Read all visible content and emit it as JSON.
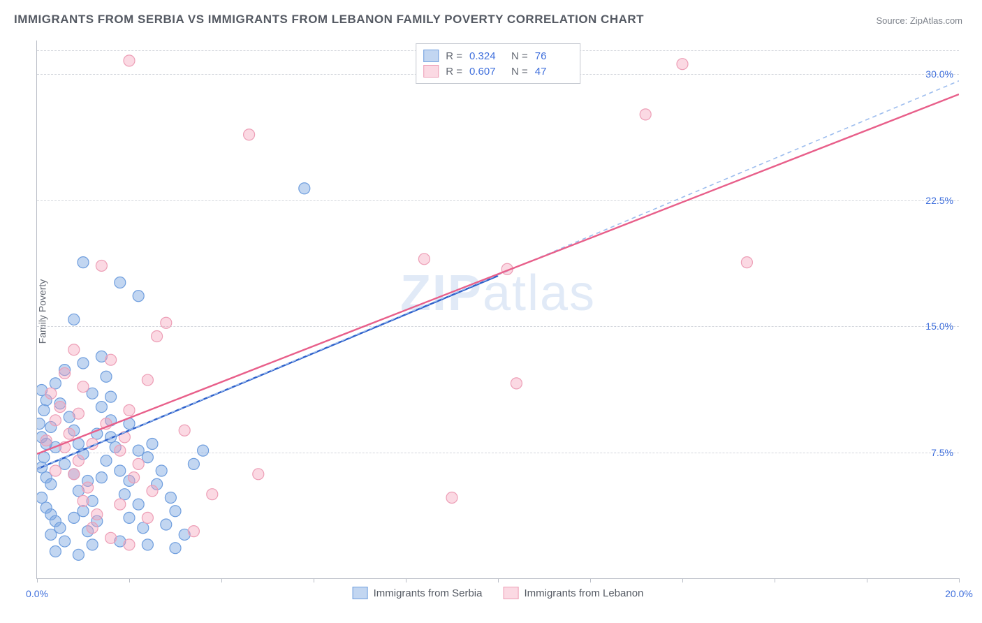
{
  "title": "IMMIGRANTS FROM SERBIA VS IMMIGRANTS FROM LEBANON FAMILY POVERTY CORRELATION CHART",
  "source": "Source: ZipAtlas.com",
  "y_axis_label": "Family Poverty",
  "watermark_bold": "ZIP",
  "watermark_light": "atlas",
  "chart": {
    "type": "scatter",
    "xlim": [
      0,
      20
    ],
    "ylim": [
      0,
      32
    ],
    "y_ticks": [
      7.5,
      15.0,
      22.5,
      30.0
    ],
    "y_tick_labels": [
      "7.5%",
      "15.0%",
      "22.5%",
      "30.0%"
    ],
    "x_ticks": [
      0,
      2,
      4,
      6,
      8,
      10,
      12,
      14,
      16,
      18,
      20
    ],
    "x_tick_labels_shown": {
      "0": "0.0%",
      "20": "20.0%"
    },
    "background_color": "#ffffff",
    "grid_color": "#d3d6dc",
    "axis_color": "#b9bdc6",
    "series": [
      {
        "name": "Immigrants from Serbia",
        "fill_color": "rgba(120,165,225,0.45)",
        "stroke_color": "#6f9ede",
        "line_color": "#2c5fca",
        "line_dashed_color": "#9dbdee",
        "R": "0.324",
        "N": "76",
        "trend": {
          "x1": 0,
          "y1": 6.5,
          "x2": 10,
          "y2": 18.0
        },
        "trend_dashed": {
          "x1": 0,
          "y1": 6.5,
          "x2": 20,
          "y2": 29.6
        },
        "points": [
          [
            0.1,
            11.2
          ],
          [
            0.2,
            10.6
          ],
          [
            0.15,
            10.0
          ],
          [
            0.05,
            9.2
          ],
          [
            0.1,
            8.4
          ],
          [
            0.2,
            8.0
          ],
          [
            0.15,
            7.2
          ],
          [
            0.1,
            6.6
          ],
          [
            0.2,
            6.0
          ],
          [
            0.3,
            5.6
          ],
          [
            0.1,
            4.8
          ],
          [
            0.2,
            4.2
          ],
          [
            0.3,
            3.8
          ],
          [
            0.4,
            3.4
          ],
          [
            0.5,
            3.0
          ],
          [
            0.3,
            2.6
          ],
          [
            0.6,
            2.2
          ],
          [
            0.4,
            1.6
          ],
          [
            0.7,
            9.6
          ],
          [
            0.8,
            8.8
          ],
          [
            0.9,
            8.0
          ],
          [
            1.0,
            7.4
          ],
          [
            0.6,
            6.8
          ],
          [
            0.8,
            6.2
          ],
          [
            1.1,
            5.8
          ],
          [
            0.9,
            5.2
          ],
          [
            1.2,
            4.6
          ],
          [
            1.0,
            4.0
          ],
          [
            1.3,
            3.4
          ],
          [
            1.1,
            2.8
          ],
          [
            1.5,
            12.0
          ],
          [
            1.2,
            11.0
          ],
          [
            1.4,
            10.2
          ],
          [
            1.6,
            9.4
          ],
          [
            1.3,
            8.6
          ],
          [
            1.7,
            7.8
          ],
          [
            1.5,
            7.0
          ],
          [
            1.8,
            6.4
          ],
          [
            2.0,
            5.8
          ],
          [
            1.9,
            5.0
          ],
          [
            2.2,
            4.4
          ],
          [
            2.0,
            3.6
          ],
          [
            2.3,
            3.0
          ],
          [
            2.5,
            8.0
          ],
          [
            2.4,
            7.2
          ],
          [
            2.7,
            6.4
          ],
          [
            2.6,
            5.6
          ],
          [
            2.9,
            4.8
          ],
          [
            3.0,
            4.0
          ],
          [
            2.8,
            3.2
          ],
          [
            3.2,
            2.6
          ],
          [
            1.0,
            18.8
          ],
          [
            1.8,
            17.6
          ],
          [
            2.2,
            16.8
          ],
          [
            0.8,
            15.4
          ],
          [
            1.4,
            13.2
          ],
          [
            0.6,
            12.4
          ],
          [
            5.8,
            23.2
          ],
          [
            3.6,
            7.6
          ],
          [
            3.4,
            6.8
          ],
          [
            2.2,
            7.6
          ],
          [
            2.0,
            9.2
          ],
          [
            1.6,
            10.8
          ],
          [
            1.2,
            2.0
          ],
          [
            0.9,
            1.4
          ],
          [
            1.8,
            2.2
          ],
          [
            2.4,
            2.0
          ],
          [
            3.0,
            1.8
          ],
          [
            0.4,
            7.8
          ],
          [
            0.3,
            9.0
          ],
          [
            0.5,
            10.4
          ],
          [
            0.4,
            11.6
          ],
          [
            1.0,
            12.8
          ],
          [
            1.6,
            8.4
          ],
          [
            1.4,
            6.0
          ],
          [
            0.8,
            3.6
          ]
        ]
      },
      {
        "name": "Immigrants from Lebanon",
        "fill_color": "rgba(245,160,185,0.40)",
        "stroke_color": "#ed9eb6",
        "line_color": "#e85f8a",
        "R": "0.607",
        "N": "47",
        "trend": {
          "x1": 0,
          "y1": 7.4,
          "x2": 20,
          "y2": 28.8
        },
        "points": [
          [
            0.3,
            11.0
          ],
          [
            0.5,
            10.2
          ],
          [
            0.4,
            9.4
          ],
          [
            0.7,
            8.6
          ],
          [
            0.6,
            7.8
          ],
          [
            0.9,
            7.0
          ],
          [
            0.8,
            6.2
          ],
          [
            1.1,
            5.4
          ],
          [
            1.0,
            4.6
          ],
          [
            1.3,
            3.8
          ],
          [
            1.2,
            3.0
          ],
          [
            1.6,
            2.4
          ],
          [
            1.5,
            9.2
          ],
          [
            1.9,
            8.4
          ],
          [
            1.8,
            7.6
          ],
          [
            2.2,
            6.8
          ],
          [
            2.1,
            6.0
          ],
          [
            2.5,
            5.2
          ],
          [
            2.8,
            15.2
          ],
          [
            2.6,
            14.4
          ],
          [
            3.8,
            5.0
          ],
          [
            4.8,
            6.2
          ],
          [
            1.4,
            18.6
          ],
          [
            0.8,
            13.6
          ],
          [
            2.0,
            30.8
          ],
          [
            4.6,
            26.4
          ],
          [
            8.4,
            19.0
          ],
          [
            10.2,
            18.4
          ],
          [
            9.0,
            4.8
          ],
          [
            10.4,
            11.6
          ],
          [
            15.4,
            18.8
          ],
          [
            14.0,
            30.6
          ],
          [
            13.2,
            27.6
          ],
          [
            2.4,
            11.8
          ],
          [
            3.2,
            8.8
          ],
          [
            1.0,
            11.4
          ],
          [
            0.6,
            12.2
          ],
          [
            2.0,
            10.0
          ],
          [
            1.8,
            4.4
          ],
          [
            2.4,
            3.6
          ],
          [
            2.0,
            2.0
          ],
          [
            1.6,
            13.0
          ],
          [
            3.4,
            2.8
          ],
          [
            0.2,
            8.2
          ],
          [
            0.4,
            6.4
          ],
          [
            1.2,
            8.0
          ],
          [
            0.9,
            9.8
          ]
        ]
      }
    ]
  },
  "legend_top": {
    "r_label": "R =",
    "n_label": "N ="
  },
  "colors": {
    "text_primary": "#555a63",
    "text_secondary": "#7a7f88",
    "value": "#3f6fdc"
  }
}
